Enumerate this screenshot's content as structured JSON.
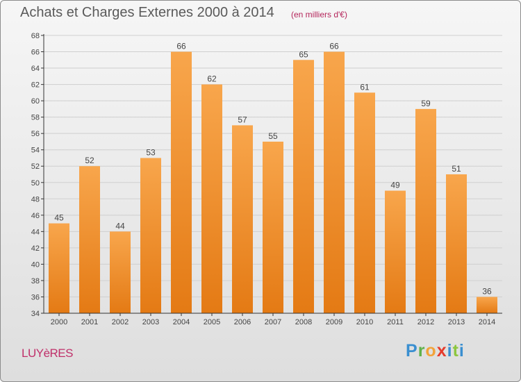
{
  "title": "Achats et Charges Externes 2000 à 2014",
  "subtitle": "(en milliers d'€)",
  "commune": "LUYèRES",
  "brand": {
    "letters": [
      "P",
      "r",
      "o",
      "x",
      "i",
      "t",
      "i"
    ],
    "colors": [
      "#3a8fd0",
      "#5fb14a",
      "#f2a33a",
      "#e53b2c",
      "#3a8fd0",
      "#8dc63f",
      "#3a8fd0"
    ]
  },
  "colors": {
    "bar_top": "#f8a64c",
    "bar_bottom": "#e47a14",
    "grid": "#cfcfcf",
    "axis": "#333333"
  },
  "chart_data": {
    "type": "bar",
    "categories": [
      "2000",
      "2001",
      "2002",
      "2003",
      "2004",
      "2005",
      "2006",
      "2007",
      "2008",
      "2009",
      "2010",
      "2011",
      "2012",
      "2013",
      "2014"
    ],
    "values": [
      45,
      52,
      44,
      53,
      66,
      62,
      57,
      55,
      65,
      66,
      61,
      49,
      59,
      51,
      36
    ],
    "title": "Achats et Charges Externes 2000 à 2014",
    "xlabel": "",
    "ylabel": "",
    "ylim": [
      34,
      68
    ],
    "yticks": [
      34,
      36,
      38,
      40,
      42,
      44,
      46,
      48,
      50,
      52,
      54,
      56,
      58,
      60,
      62,
      64,
      66,
      68
    ],
    "grid": true,
    "legend": "none"
  }
}
